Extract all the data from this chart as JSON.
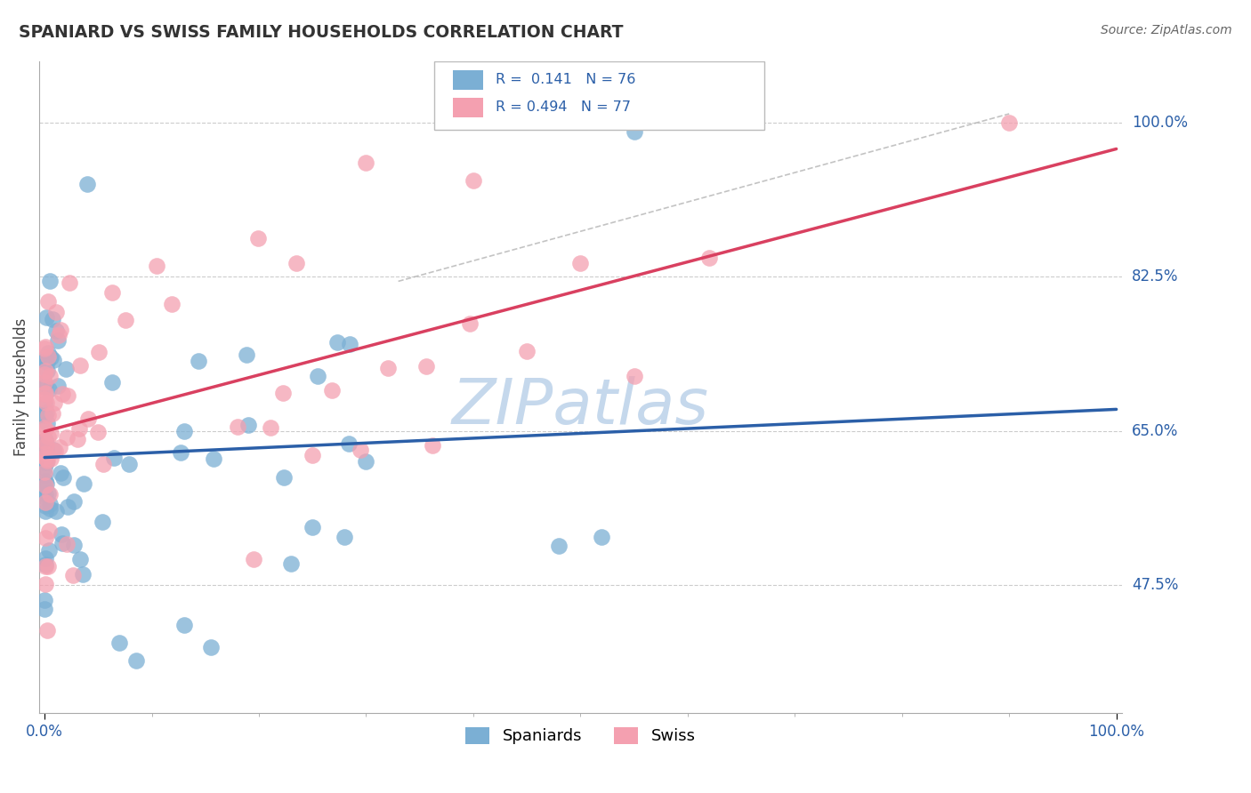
{
  "title": "SPANIARD VS SWISS FAMILY HOUSEHOLDS CORRELATION CHART",
  "source": "Source: ZipAtlas.com",
  "ylabel": "Family Households",
  "ytick_labels": [
    "100.0%",
    "82.5%",
    "65.0%",
    "47.5%"
  ],
  "ytick_values": [
    1.0,
    0.825,
    0.65,
    0.475
  ],
  "legend_spaniards": "Spaniards",
  "legend_swiss": "Swiss",
  "r_spaniards": 0.141,
  "n_spaniards": 76,
  "r_swiss": 0.494,
  "n_swiss": 77,
  "blue_color": "#7BAFD4",
  "pink_color": "#F4A0B0",
  "blue_line_color": "#2B5FA8",
  "pink_line_color": "#D94060",
  "grid_color": "#CCCCCC",
  "watermark_color": "#C5D8EC",
  "background_color": "#FFFFFF"
}
